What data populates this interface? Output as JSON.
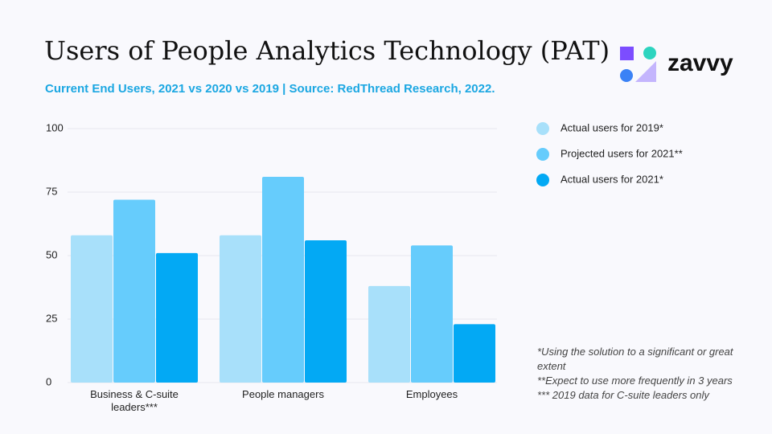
{
  "chart_data": {
    "type": "bar",
    "title": "Users of People Analytics Technology (PAT)",
    "subtitle": "Current End Users, 2021 vs 2020 vs 2019 | Source: RedThread Research, 2022.",
    "logo": "zavvy",
    "categories": [
      "Business & C-suite leaders***",
      "People managers",
      "Employees"
    ],
    "series": [
      {
        "name": "Actual users for 2019*",
        "color": "#a8e0fa",
        "values": [
          58,
          58,
          38
        ]
      },
      {
        "name": "Projected users for 2021**",
        "color": "#66ccfc",
        "values": [
          72,
          81,
          54
        ]
      },
      {
        "name": "Actual users for 2021*",
        "color": "#03a9f4",
        "values": [
          51,
          56,
          23
        ]
      }
    ],
    "ylim": [
      0,
      100
    ],
    "yticks": [
      0,
      25,
      50,
      75,
      100
    ],
    "grid": true,
    "notes": [
      "*Using the solution to a significant or great extent",
      "**Expect to use more frequently in 3 years",
      "*** 2019 data for C-suite leaders only"
    ]
  }
}
